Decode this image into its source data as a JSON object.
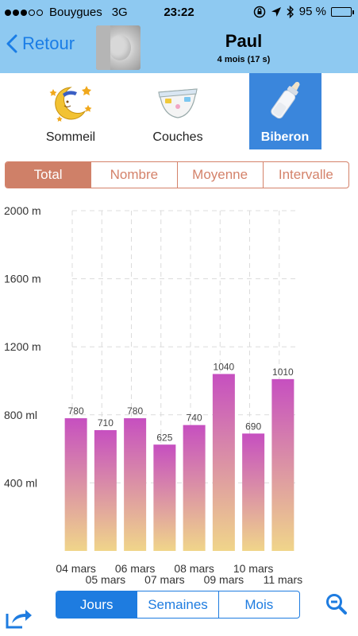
{
  "status_bar": {
    "carrier": "Bouygues",
    "network": "3G",
    "time": "23:22",
    "battery": "95 %"
  },
  "header": {
    "back_label": "Retour",
    "child_name": "Paul",
    "child_age": "4 mois  (17 s)"
  },
  "categories": [
    {
      "label": "Sommeil",
      "icon": "moon-stars-icon",
      "active": false
    },
    {
      "label": "Couches",
      "icon": "diaper-icon",
      "active": false
    },
    {
      "label": "Biberon",
      "icon": "baby-bottle-icon",
      "active": true
    }
  ],
  "metric_tabs": [
    "Total",
    "Nombre",
    "Moyenne",
    "Intervalle"
  ],
  "metric_active": "Total",
  "period_tabs": [
    "Jours",
    "Semaines",
    "Mois"
  ],
  "period_active": "Jours",
  "colors": {
    "header_bg": "#8ec9f1",
    "accent_blue": "#1e7ce0",
    "metric_accent": "#cf8068",
    "bar_top": "#c64fc0",
    "bar_bottom": "#f0d58a"
  },
  "chart_data": {
    "type": "bar",
    "categories": [
      "04 mars",
      "05 mars",
      "06 mars",
      "07 mars",
      "08 mars",
      "09 mars",
      "10 mars",
      "11 mars"
    ],
    "values": [
      780,
      710,
      780,
      625,
      740,
      1040,
      690,
      1010
    ],
    "data_labels": [
      "780",
      "710",
      "780",
      "625",
      "740",
      "1040",
      "690",
      "1010"
    ],
    "y_ticks": [
      400,
      800,
      1200,
      1600,
      2000
    ],
    "y_tick_labels": [
      "400 ml",
      "800 ml",
      "1200 m",
      "1600 m",
      "2000 m"
    ],
    "ylim": [
      0,
      2000
    ],
    "grid": true
  }
}
